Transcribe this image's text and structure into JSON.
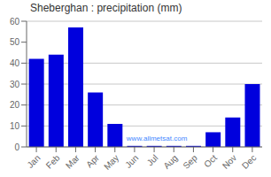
{
  "chart_data": {
    "type": "bar",
    "title": "Sheberghan : precipitation (mm)",
    "categories": [
      "Jan",
      "Feb",
      "Mar",
      "Apr",
      "May",
      "Jun",
      "Jul",
      "Aug",
      "Sep",
      "Oct",
      "Nov",
      "Dec"
    ],
    "values": [
      42,
      44,
      57,
      26,
      11,
      0.5,
      0.5,
      0.5,
      0.5,
      7,
      14,
      30
    ],
    "color": "#0000dd",
    "ylim": [
      0,
      60
    ],
    "yticks": [
      0,
      10,
      20,
      30,
      40,
      50,
      60
    ],
    "grid": true,
    "annotations": [
      "www.allmetsat.com"
    ]
  }
}
